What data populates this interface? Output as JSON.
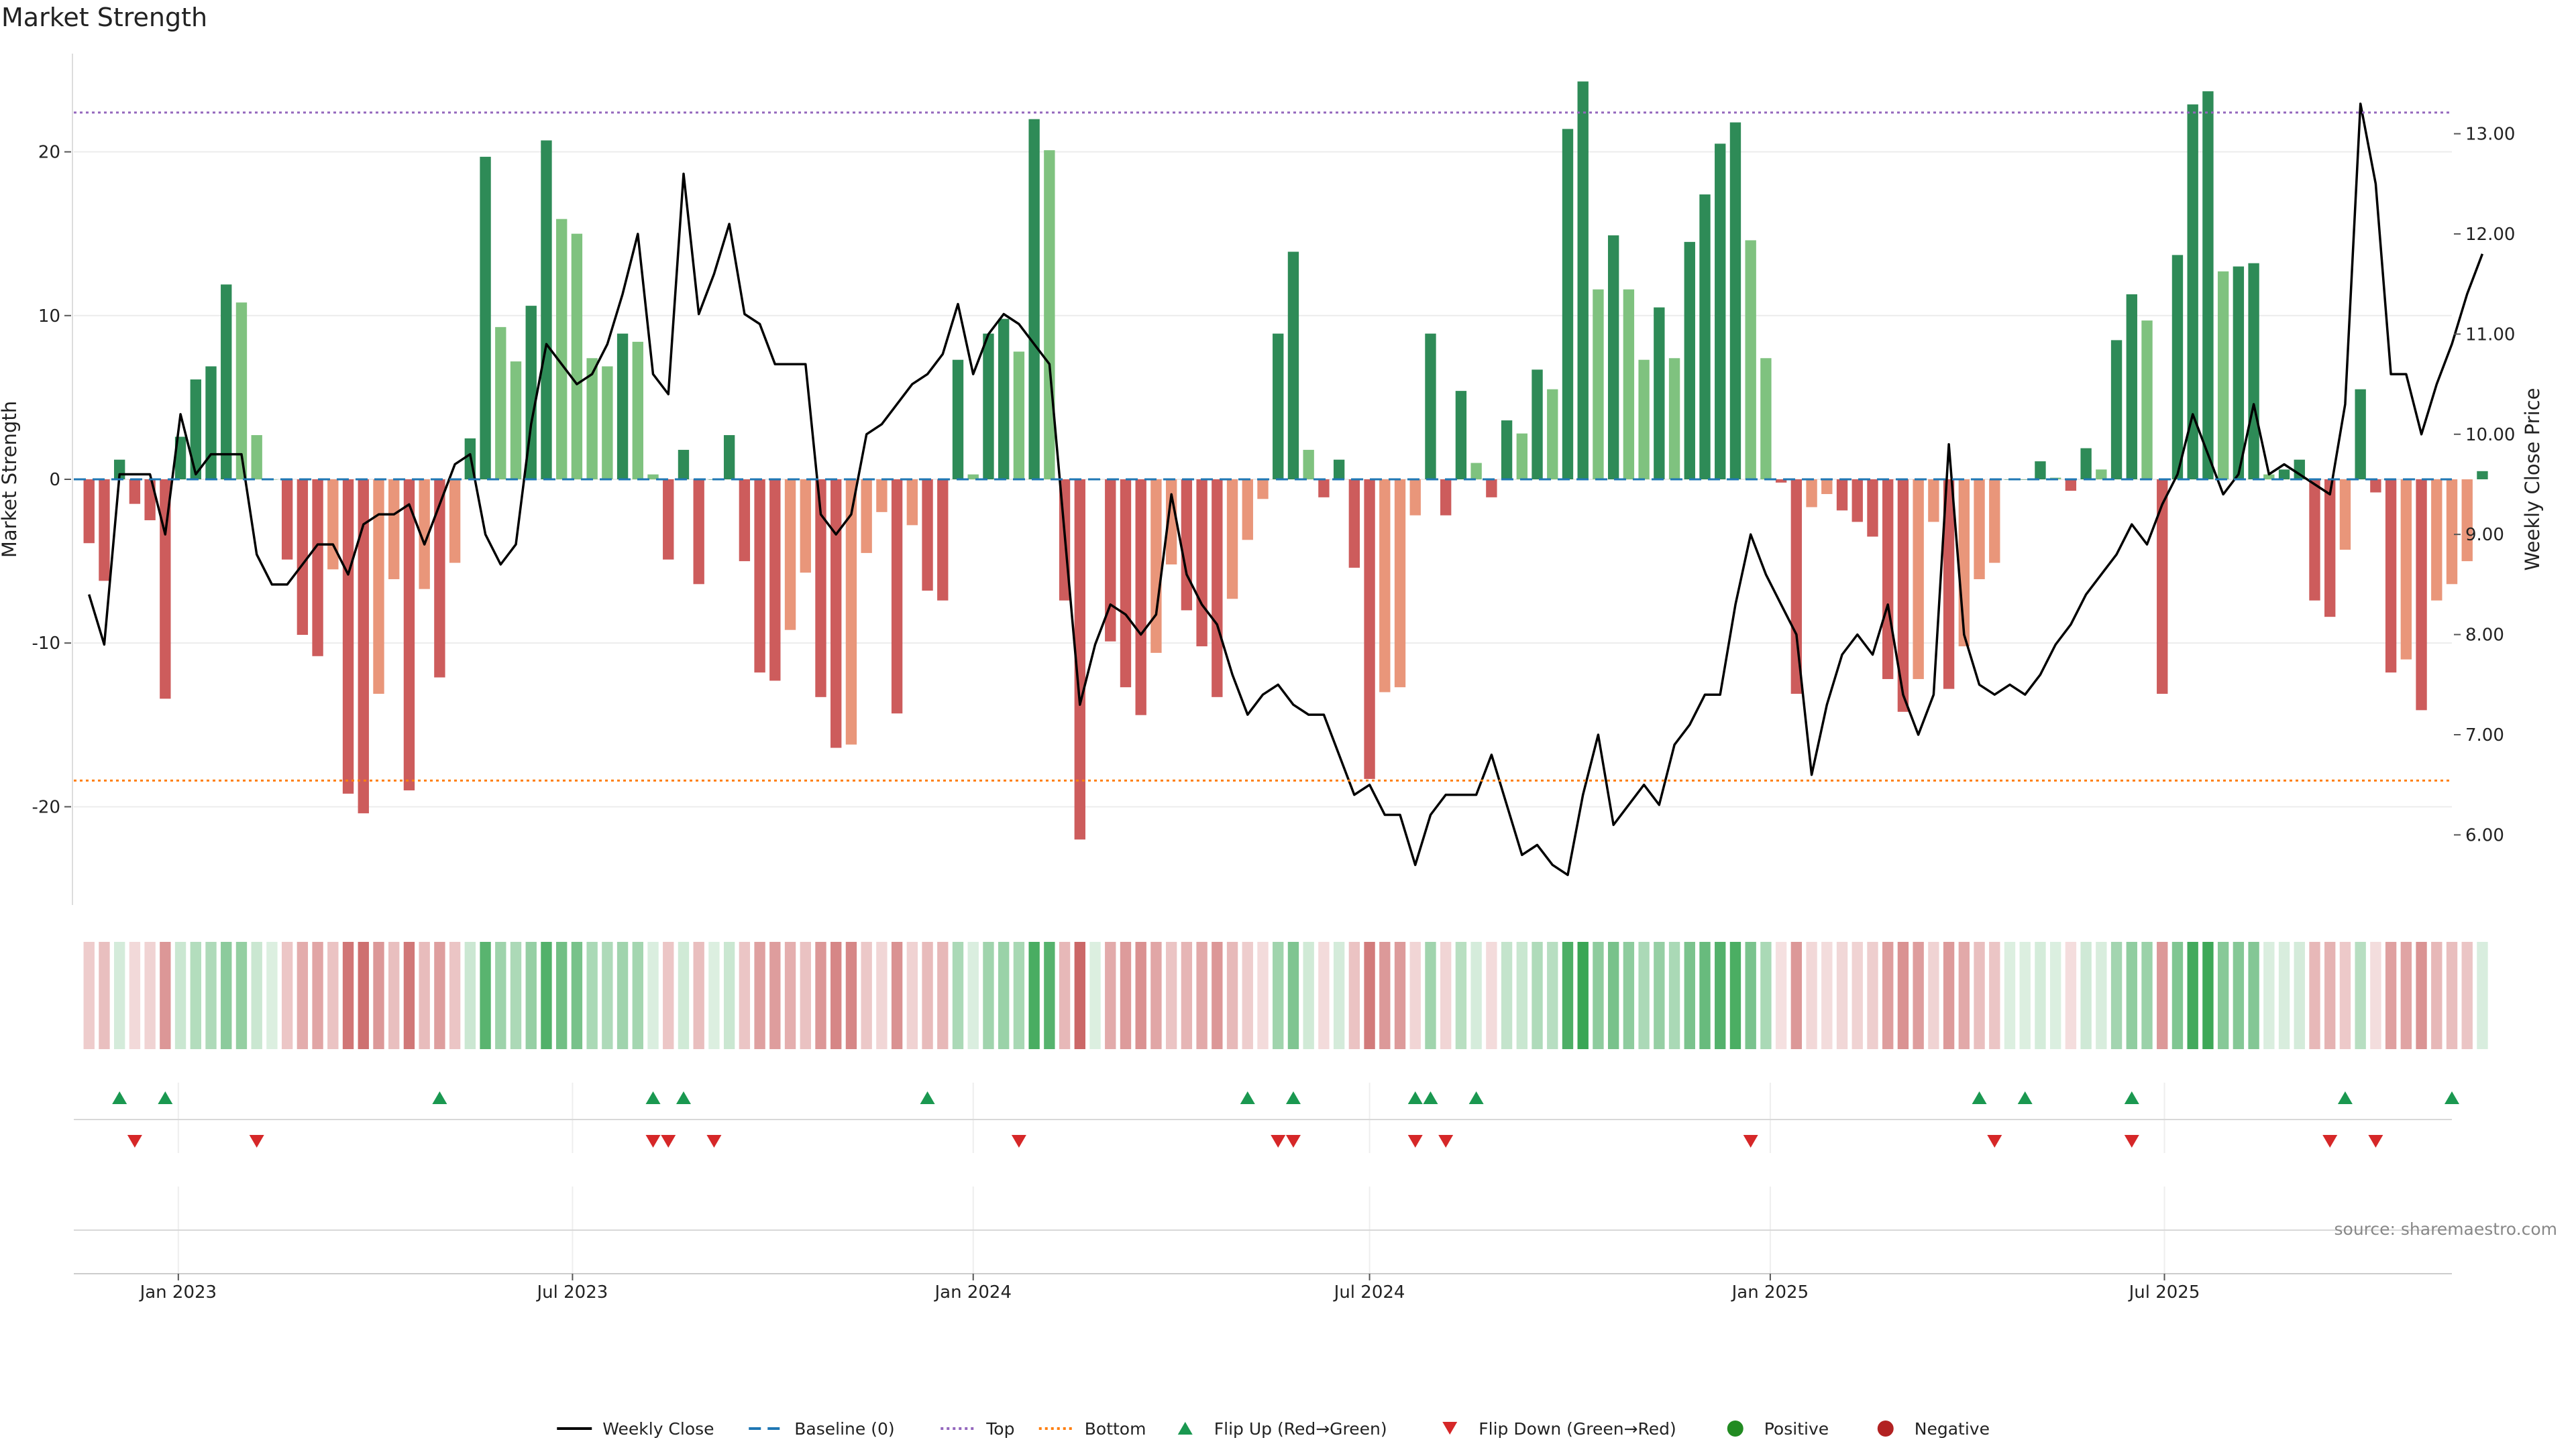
{
  "title": "Market Strength",
  "source": "source: sharemaestro.com",
  "colors": {
    "pos_strong": "#2e8b57",
    "pos_light": "#7fc27f",
    "neg_strong": "#cd5c5c",
    "neg_light": "#e9967a",
    "line": "#000000",
    "baseline": "#1f77b4",
    "top": "#9467bd",
    "bottom": "#ff7f0e",
    "flip_up": "#1a9850",
    "flip_down": "#d62728",
    "positive_dot": "#228b22",
    "negative_dot": "#b22222"
  },
  "chart_data": {
    "type": "bar",
    "title": "Market Strength",
    "ylabel": "Market Strength",
    "y2label": "Weekly Close Price",
    "ylim": [
      -26,
      26
    ],
    "y2lim": [
      5.3,
      13.8
    ],
    "yticks": [
      -20,
      -10,
      0,
      10,
      20
    ],
    "y2ticks": [
      6.0,
      7.0,
      8.0,
      9.0,
      10.0,
      11.0,
      12.0,
      13.0
    ],
    "y2tick_labels": [
      "6.00",
      "7.00",
      "8.00",
      "9.00",
      "10.00",
      "11.00",
      "12.00",
      "13.00"
    ],
    "x_start": "2022-11-21",
    "x_step_days": 7,
    "xlim": [
      "2022-11-14",
      "2025-11-10"
    ],
    "xticks": [
      {
        "label": "Jan 2023",
        "date": "2023-01-01"
      },
      {
        "label": "Jul 2023",
        "date": "2023-07-01"
      },
      {
        "label": "Jan 2024",
        "date": "2024-01-01"
      },
      {
        "label": "Jul 2024",
        "date": "2024-07-01"
      },
      {
        "label": "Jan 2025",
        "date": "2025-01-01"
      },
      {
        "label": "Jul 2025",
        "date": "2025-07-01"
      }
    ],
    "top_level": 22.4,
    "bottom_level": -18.4,
    "baseline": 0,
    "strength": [
      -3.9,
      -6.2,
      1.2,
      -1.5,
      -2.5,
      -13.4,
      2.6,
      6.1,
      6.9,
      11.9,
      10.8,
      2.7,
      0,
      -4.9,
      -9.5,
      -10.8,
      -5.5,
      -19.2,
      -20.4,
      -13.1,
      -6.1,
      -19.0,
      -6.7,
      -12.1,
      -5.1,
      2.5,
      19.7,
      9.3,
      7.2,
      10.6,
      20.7,
      15.9,
      15.0,
      7.4,
      6.9,
      8.9,
      8.4,
      0.3,
      -4.9,
      1.8,
      -6.4,
      0,
      2.7,
      -5.0,
      -11.8,
      -12.3,
      -9.2,
      -5.7,
      -13.3,
      -16.4,
      -16.2,
      -4.5,
      -2.0,
      -14.3,
      -2.8,
      -6.8,
      -7.4,
      7.3,
      0.3,
      8.9,
      9.8,
      7.8,
      22.0,
      20.1,
      -7.4,
      -22.0,
      0,
      -9.9,
      -12.7,
      -14.4,
      -10.6,
      -5.2,
      -8.0,
      -10.2,
      -13.3,
      -7.3,
      -3.7,
      -1.2,
      8.9,
      13.9,
      1.8,
      -1.1,
      1.2,
      -5.4,
      -18.3,
      -13.0,
      -12.7,
      -2.2,
      8.9,
      -2.2,
      5.4,
      1.0,
      -1.1,
      3.6,
      2.8,
      6.7,
      5.5,
      21.4,
      24.3,
      11.6,
      14.9,
      11.6,
      7.3,
      10.5,
      7.4,
      14.5,
      17.4,
      20.5,
      21.8,
      14.6,
      7.4,
      -0.2,
      -13.1,
      -1.7,
      -0.9,
      -1.9,
      -2.6,
      -3.5,
      -12.2,
      -14.2,
      -12.2,
      -2.6,
      -12.8,
      -10.2,
      -6.1,
      -5.1,
      0,
      0,
      1.1,
      0.1,
      -0.7,
      1.9,
      0.6,
      8.5,
      11.3,
      9.7,
      -13.1,
      13.7,
      22.9,
      23.7,
      12.7,
      13.0,
      13.2,
      0.3,
      0.6,
      1.2,
      -7.4,
      -8.4,
      -4.3,
      5.5,
      -0.8,
      -11.8,
      -11.0,
      -14.1,
      -7.4,
      -6.4,
      -5.0,
      0.5
    ],
    "closes": [
      8.4,
      7.9,
      9.6,
      9.6,
      9.6,
      9.0,
      10.2,
      9.6,
      9.8,
      9.8,
      9.8,
      8.8,
      8.5,
      8.5,
      8.7,
      8.9,
      8.9,
      8.6,
      9.1,
      9.2,
      9.2,
      9.3,
      8.9,
      9.3,
      9.7,
      9.8,
      9.0,
      8.7,
      8.9,
      10.1,
      10.9,
      10.7,
      10.5,
      10.6,
      10.9,
      11.4,
      12.0,
      10.6,
      10.4,
      12.6,
      11.2,
      11.6,
      12.1,
      11.2,
      11.1,
      10.7,
      10.7,
      10.7,
      9.2,
      9.0,
      9.2,
      10.0,
      10.1,
      10.3,
      10.5,
      10.6,
      10.8,
      11.3,
      10.6,
      11.0,
      11.2,
      11.1,
      10.9,
      10.7,
      9.0,
      7.3,
      7.9,
      8.3,
      8.2,
      8.0,
      8.2,
      9.4,
      8.6,
      8.3,
      8.1,
      7.6,
      7.2,
      7.4,
      7.5,
      7.3,
      7.2,
      7.2,
      6.8,
      6.4,
      6.5,
      6.2,
      6.2,
      5.7,
      6.2,
      6.4,
      6.4,
      6.4,
      6.8,
      6.3,
      5.8,
      5.9,
      5.7,
      5.6,
      6.4,
      7.0,
      6.1,
      6.3,
      6.5,
      6.3,
      6.9,
      7.1,
      7.4,
      7.4,
      8.3,
      9.0,
      8.6,
      8.3,
      8.0,
      6.6,
      7.3,
      7.8,
      8.0,
      7.8,
      8.3,
      7.4,
      7.0,
      7.4,
      9.9,
      8.0,
      7.5,
      7.4,
      7.5,
      7.4,
      7.6,
      7.9,
      8.1,
      8.4,
      8.6,
      8.8,
      9.1,
      8.9,
      9.3,
      9.6,
      10.2,
      9.8,
      9.4,
      9.6,
      10.3,
      9.6,
      9.7,
      9.6,
      9.5,
      9.4,
      10.3,
      13.3,
      12.5,
      10.6,
      10.6,
      10.0,
      10.5,
      10.9,
      11.4,
      11.8
    ],
    "flip_up_dates": [
      "2022-12-05",
      "2022-12-26",
      "2023-05-01",
      "2023-08-07",
      "2023-08-21",
      "2023-12-11",
      "2024-05-06",
      "2024-05-27",
      "2024-07-22",
      "2024-07-29",
      "2024-08-19",
      "2025-04-07",
      "2025-04-28",
      "2025-06-16",
      "2025-09-22",
      "2025-11-10"
    ],
    "flip_down_dates": [
      "2022-12-12",
      "2023-02-06",
      "2023-08-07",
      "2023-08-14",
      "2023-09-04",
      "2024-01-22",
      "2024-05-20",
      "2024-05-27",
      "2024-07-22",
      "2024-08-05",
      "2024-12-23",
      "2025-04-14",
      "2025-06-16",
      "2025-09-15",
      "2025-10-06"
    ],
    "legend": [
      {
        "label": "Weekly Close",
        "kind": "line"
      },
      {
        "label": "Baseline (0)",
        "kind": "dash"
      },
      {
        "label": "Top",
        "kind": "dot"
      },
      {
        "label": "Bottom",
        "kind": "dot2"
      },
      {
        "label": "Flip Up (Red→Green)",
        "kind": "tri-up"
      },
      {
        "label": "Flip Down (Green→Red)",
        "kind": "tri-down"
      },
      {
        "label": "Positive",
        "kind": "circle-pos"
      },
      {
        "label": "Negative",
        "kind": "circle-neg"
      }
    ],
    "legend_position": "bottom",
    "grid": true
  }
}
